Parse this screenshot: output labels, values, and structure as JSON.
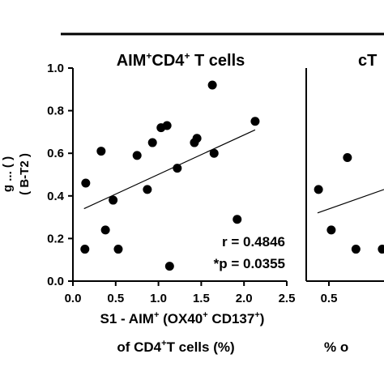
{
  "chart_data": [
    {
      "type": "scatter",
      "title_main": "AIM",
      "title_sup1": "+",
      "title_mid": "CD4",
      "title_sup2": "+",
      "title_tail": " T cells",
      "ylabel_fragment_1": "( B-T2 )",
      "ylabel_fragment_2": "g   ...   (  )",
      "xlabel_line1_a": "S1 - AIM",
      "xlabel_line1_sup1": "+",
      "xlabel_line1_b": " (OX40",
      "xlabel_line1_sup2": "+",
      "xlabel_line1_c": " CD137",
      "xlabel_line1_sup3": "+",
      "xlabel_line1_d": ")",
      "xlabel_line2_a": "of CD4",
      "xlabel_line2_sup": "+",
      "xlabel_line2_b": "T cells (%)",
      "xlim": [
        0,
        2.5
      ],
      "ylim": [
        0,
        1.0
      ],
      "xticks": [
        "0.0",
        "0.5",
        "1.0",
        "1.5",
        "2.0",
        "2.5"
      ],
      "yticks": [
        "0.0",
        "0.2",
        "0.4",
        "0.6",
        "0.8",
        "1.0"
      ],
      "annotation_r": "r = 0.4846",
      "annotation_p": "*p = 0.0355",
      "regression": {
        "x": [
          0.13,
          2.13
        ],
        "y": [
          0.34,
          0.71
        ]
      },
      "points": [
        {
          "x": 0.15,
          "y": 0.46
        },
        {
          "x": 0.14,
          "y": 0.15
        },
        {
          "x": 0.33,
          "y": 0.61
        },
        {
          "x": 0.38,
          "y": 0.24
        },
        {
          "x": 0.47,
          "y": 0.38
        },
        {
          "x": 0.53,
          "y": 0.15
        },
        {
          "x": 0.75,
          "y": 0.59
        },
        {
          "x": 0.87,
          "y": 0.43
        },
        {
          "x": 0.93,
          "y": 0.65
        },
        {
          "x": 1.03,
          "y": 0.72
        },
        {
          "x": 1.1,
          "y": 0.73
        },
        {
          "x": 1.13,
          "y": 0.07
        },
        {
          "x": 1.22,
          "y": 0.53
        },
        {
          "x": 1.42,
          "y": 0.65
        },
        {
          "x": 1.45,
          "y": 0.67
        },
        {
          "x": 1.63,
          "y": 0.92
        },
        {
          "x": 1.65,
          "y": 0.6
        },
        {
          "x": 1.92,
          "y": 0.29
        },
        {
          "x": 2.13,
          "y": 0.75
        }
      ]
    },
    {
      "type": "scatter",
      "title_fragment": "cT",
      "xtick_fragment": "0.5",
      "xlabel_fragment": "% o",
      "regression": {
        "x": [
          0.0,
          0.82
        ],
        "y": [
          0.32,
          0.43
        ]
      },
      "points": [
        {
          "x": 0.03,
          "y": 0.43
        },
        {
          "x": 0.18,
          "y": 0.24
        },
        {
          "x": 0.37,
          "y": 0.58
        },
        {
          "x": 0.47,
          "y": 0.15
        },
        {
          "x": 0.78,
          "y": 0.15
        }
      ]
    }
  ]
}
